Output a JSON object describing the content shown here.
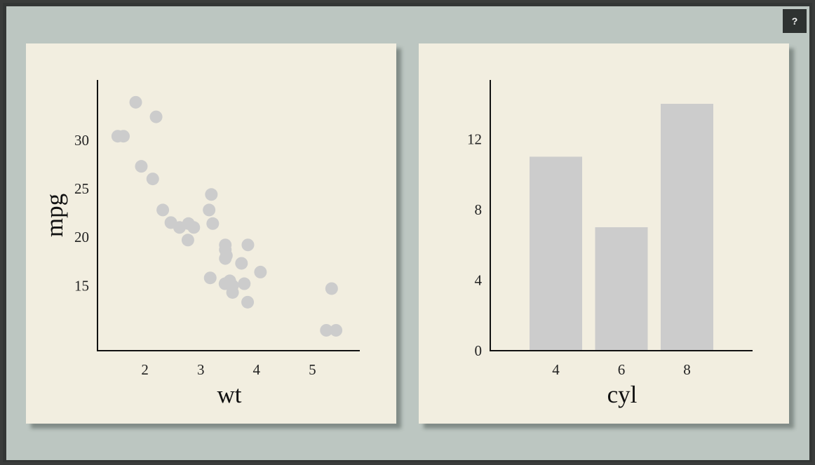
{
  "ui": {
    "help_label": "?"
  },
  "chart_data": [
    {
      "type": "scatter",
      "title": "",
      "xlabel": "wt",
      "ylabel": "mpg",
      "xlim": [
        1.15,
        5.85
      ],
      "ylim": [
        8.3,
        36.2
      ],
      "xticks": [
        2,
        3,
        4,
        5
      ],
      "yticks": [
        15,
        20,
        25,
        30
      ],
      "point_color": "#cccccc",
      "points": [
        [
          2.62,
          21.0
        ],
        [
          2.875,
          21.0
        ],
        [
          2.32,
          22.8
        ],
        [
          3.215,
          21.4
        ],
        [
          3.44,
          18.7
        ],
        [
          3.46,
          18.1
        ],
        [
          3.57,
          14.3
        ],
        [
          3.19,
          24.4
        ],
        [
          3.15,
          22.8
        ],
        [
          3.44,
          19.2
        ],
        [
          3.44,
          17.8
        ],
        [
          4.07,
          16.4
        ],
        [
          3.73,
          17.3
        ],
        [
          3.78,
          15.2
        ],
        [
          5.25,
          10.4
        ],
        [
          5.424,
          10.4
        ],
        [
          5.345,
          14.7
        ],
        [
          2.2,
          32.4
        ],
        [
          1.615,
          30.4
        ],
        [
          1.835,
          33.9
        ],
        [
          2.465,
          21.5
        ],
        [
          3.52,
          15.5
        ],
        [
          3.435,
          15.2
        ],
        [
          3.84,
          13.3
        ],
        [
          3.845,
          19.2
        ],
        [
          1.935,
          27.3
        ],
        [
          2.14,
          26.0
        ],
        [
          1.513,
          30.4
        ],
        [
          3.17,
          15.8
        ],
        [
          2.77,
          19.7
        ],
        [
          3.57,
          15.0
        ],
        [
          2.78,
          21.4
        ]
      ]
    },
    {
      "type": "bar",
      "title": "",
      "xlabel": "cyl",
      "ylabel": "",
      "categories": [
        "4",
        "6",
        "8"
      ],
      "values": [
        11,
        7,
        14
      ],
      "ylim": [
        0,
        14
      ],
      "yticks": [
        0,
        4,
        8,
        12
      ],
      "bar_color": "#cccccc"
    }
  ]
}
